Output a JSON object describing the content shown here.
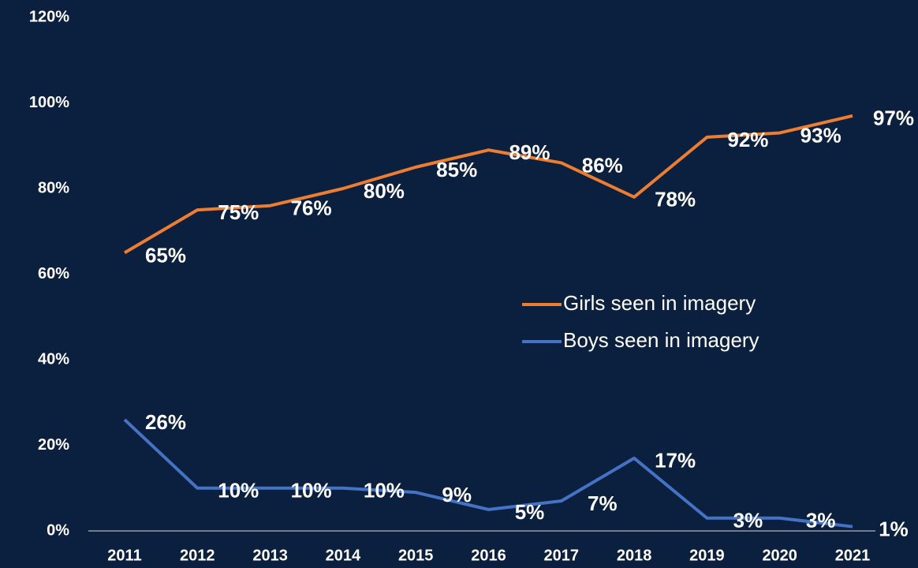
{
  "chart_data": {
    "type": "line",
    "categories": [
      "2011",
      "2012",
      "2013",
      "2014",
      "2015",
      "2016",
      "2017",
      "2018",
      "2019",
      "2020",
      "2021"
    ],
    "series": [
      {
        "name": "Girls seen in imagery",
        "color": "#ed7d31",
        "values": [
          65,
          75,
          76,
          80,
          85,
          89,
          86,
          78,
          92,
          93,
          97
        ],
        "value_labels": [
          "65%",
          "75%",
          "76%",
          "80%",
          "85%",
          "89%",
          "86%",
          "78%",
          "92%",
          "93%",
          "97%"
        ]
      },
      {
        "name": "Boys seen in imagery",
        "color": "#4472c4",
        "values": [
          26,
          10,
          10,
          10,
          9,
          5,
          7,
          17,
          3,
          3,
          1
        ],
        "value_labels": [
          "26%",
          "10%",
          "10%",
          "10%",
          "9%",
          "5%",
          "7%",
          "17%",
          "3%",
          "3%",
          "1%"
        ]
      }
    ],
    "ylim": [
      0,
      120
    ],
    "yticks": [
      {
        "value": 0,
        "label": "0%"
      },
      {
        "value": 20,
        "label": "20%"
      },
      {
        "value": 40,
        "label": "40%"
      },
      {
        "value": 60,
        "label": "60%"
      },
      {
        "value": 80,
        "label": "80%"
      },
      {
        "value": 100,
        "label": "100%"
      },
      {
        "value": 120,
        "label": "120%"
      }
    ],
    "grid": false,
    "legend": "right"
  }
}
